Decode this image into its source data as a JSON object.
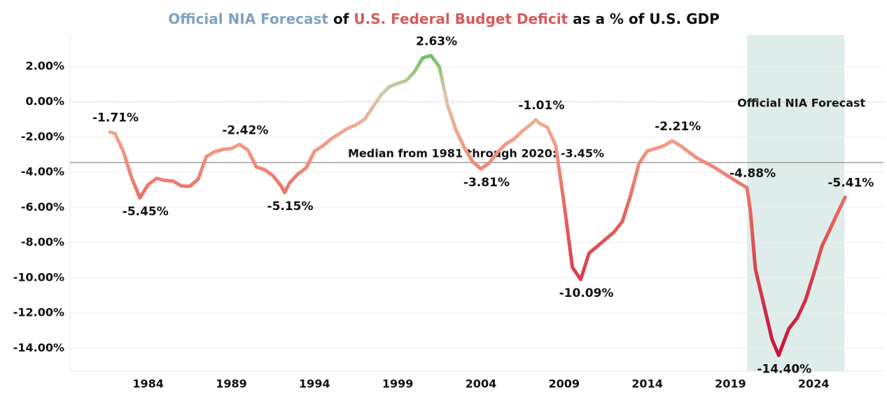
{
  "chart_data": {
    "type": "line",
    "title_parts": [
      {
        "text": "Official NIA Forecast",
        "color": "#7fa3c2"
      },
      {
        "text": " of ",
        "color": "#111111"
      },
      {
        "text": "U.S. Federal Budget Deficit",
        "color": "#d95a5a"
      },
      {
        "text": " as a % of U.S. GDP",
        "color": "#111111"
      }
    ],
    "x": [
      1981.7,
      1982.0,
      1982.5,
      1983.0,
      1983.5,
      1984.0,
      1984.5,
      1985.0,
      1985.5,
      1986.0,
      1986.5,
      1987.0,
      1987.5,
      1988.0,
      1988.5,
      1989.0,
      1989.5,
      1990.0,
      1990.5,
      1991.0,
      1991.5,
      1992.0,
      1992.2,
      1992.5,
      1993.0,
      1993.5,
      1994.0,
      1994.5,
      1995.0,
      1995.5,
      1996.0,
      1996.5,
      1997.0,
      1997.5,
      1998.0,
      1998.5,
      1999.0,
      1999.5,
      2000.0,
      2000.5,
      2001.0,
      2001.5,
      2002.0,
      2002.5,
      2003.0,
      2003.5,
      2004.0,
      2004.5,
      2005.0,
      2005.5,
      2006.0,
      2006.5,
      2007.0,
      2007.3,
      2007.5,
      2008.0,
      2008.5,
      2009.0,
      2009.5,
      2010.0,
      2010.5,
      2011.0,
      2011.5,
      2012.0,
      2012.5,
      2013.0,
      2013.5,
      2014.0,
      2014.5,
      2015.0,
      2015.5,
      2016.0,
      2016.5,
      2017.0,
      2017.5,
      2018.0,
      2018.5,
      2019.0,
      2019.5,
      2020.0,
      2020.2,
      2020.5,
      2021.0,
      2021.5,
      2021.9,
      2022.5,
      2023.0,
      2023.5,
      2024.0,
      2024.5,
      2025.0,
      2025.5,
      2025.9
    ],
    "values": [
      -1.71,
      -1.8,
      -2.8,
      -4.3,
      -5.45,
      -4.7,
      -4.35,
      -4.46,
      -4.5,
      -4.78,
      -4.8,
      -4.4,
      -3.1,
      -2.83,
      -2.7,
      -2.65,
      -2.42,
      -2.75,
      -3.7,
      -3.85,
      -4.2,
      -4.8,
      -5.15,
      -4.6,
      -4.1,
      -3.75,
      -2.8,
      -2.5,
      -2.1,
      -1.8,
      -1.5,
      -1.3,
      -1.0,
      -0.3,
      0.4,
      0.85,
      1.05,
      1.2,
      1.7,
      2.5,
      2.63,
      2.0,
      -0.2,
      -1.6,
      -2.6,
      -3.4,
      -3.81,
      -3.47,
      -2.85,
      -2.39,
      -2.1,
      -1.65,
      -1.28,
      -1.01,
      -1.2,
      -1.45,
      -2.5,
      -5.8,
      -9.4,
      -10.09,
      -8.6,
      -8.2,
      -7.8,
      -7.4,
      -6.8,
      -5.3,
      -3.5,
      -2.79,
      -2.65,
      -2.5,
      -2.21,
      -2.5,
      -2.85,
      -3.2,
      -3.45,
      -3.7,
      -4.0,
      -4.3,
      -4.6,
      -4.88,
      -6.2,
      -9.5,
      -11.5,
      -13.5,
      -14.4,
      -12.9,
      -12.3,
      -11.3,
      -9.8,
      -8.2,
      -7.2,
      -6.2,
      -5.41
    ],
    "color_scale": [
      {
        "value": 2.6,
        "color": "#72c264"
      },
      {
        "value": 0.5,
        "color": "#d8c9ae"
      },
      {
        "value": -2,
        "color": "#f4a08a"
      },
      {
        "value": -6,
        "color": "#e8675f"
      },
      {
        "value": -14,
        "color": "#c9133b"
      }
    ],
    "annotations": [
      {
        "x": 1981.7,
        "value": -1.71,
        "label": "-1.71%",
        "position": "above"
      },
      {
        "x": 1983.5,
        "value": -5.45,
        "label": "-5.45%",
        "position": "below"
      },
      {
        "x": 1989.5,
        "value": -2.42,
        "label": "-2.42%",
        "position": "above"
      },
      {
        "x": 1992.2,
        "value": -5.15,
        "label": "-5.15%",
        "position": "below"
      },
      {
        "x": 2001.0,
        "value": 2.63,
        "label": "2.63%",
        "position": "above"
      },
      {
        "x": 2004.0,
        "value": -3.81,
        "label": "-3.81%",
        "position": "below"
      },
      {
        "x": 2007.3,
        "value": -1.01,
        "label": "-1.01%",
        "position": "above"
      },
      {
        "x": 2010.0,
        "value": -10.09,
        "label": "-10.09%",
        "position": "below"
      },
      {
        "x": 2015.5,
        "value": -2.21,
        "label": "-2.21%",
        "position": "above"
      },
      {
        "x": 2020.0,
        "value": -4.88,
        "label": "-4.88%",
        "position": "above"
      },
      {
        "x": 2021.9,
        "value": -14.4,
        "label": "-14.40%",
        "position": "below"
      },
      {
        "x": 2025.9,
        "value": -5.41,
        "label": "-5.41%",
        "position": "above"
      }
    ],
    "median": {
      "value": -3.45,
      "label": "Median from 1981 through 2020: -3.45%",
      "color": "#a0a0a0"
    },
    "forecast": {
      "start": 2020.0,
      "end": 2025.85,
      "label": "Official NIA Forecast",
      "color": "#deede9"
    },
    "xlim": [
      1979.3,
      2028.2
    ],
    "xticks": [
      1984,
      1989,
      1994,
      1999,
      2004,
      2009,
      2014,
      2019,
      2024
    ],
    "ylim": [
      -15.3,
      3.8
    ],
    "yticks": [
      {
        "value": 2,
        "label": "2.00%"
      },
      {
        "value": 0,
        "label": "0.00%"
      },
      {
        "value": -2,
        "label": "-2.00%"
      },
      {
        "value": -4,
        "label": "-4.00%"
      },
      {
        "value": -6,
        "label": "-6.00%"
      },
      {
        "value": -8,
        "label": "-8.00%"
      },
      {
        "value": -10,
        "label": "-10.00%"
      },
      {
        "value": -12,
        "label": "-12.00%"
      },
      {
        "value": -14,
        "label": "-14.00%"
      }
    ],
    "grid": true
  }
}
